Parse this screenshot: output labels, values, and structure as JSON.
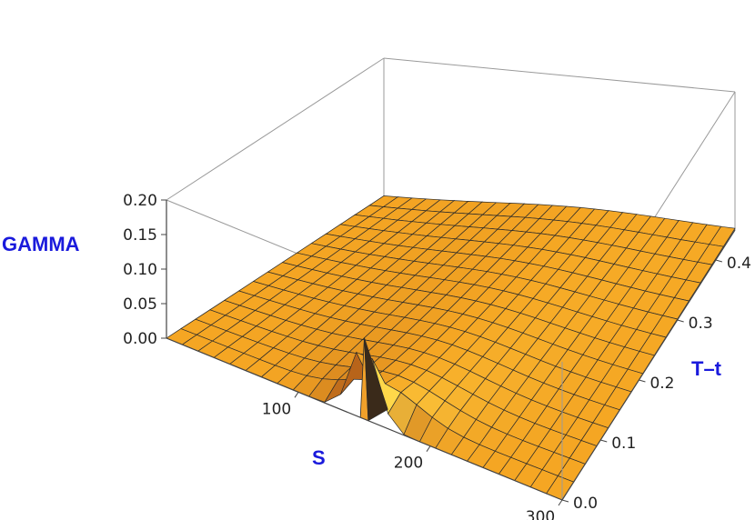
{
  "chart_data": {
    "type": "surface3d",
    "x_axis": {
      "label": "S",
      "range": [
        0,
        300
      ],
      "ticks": [
        "100",
        "200",
        "300"
      ]
    },
    "y_axis": {
      "label": "T–t",
      "range": [
        0,
        0.45
      ],
      "ticks": [
        "0.0",
        "0.1",
        "0.2",
        "0.3",
        "0.4"
      ]
    },
    "z_axis": {
      "label": "GAMMA",
      "range": [
        0,
        0.2
      ],
      "ticks": [
        "0.00",
        "0.05",
        "0.10",
        "0.15",
        "0.20"
      ]
    },
    "surface": {
      "description_function": "gamma(S, T-t) of a European option; spike at S≈150 near T-t=0, smoothing and spreading as T-t grows",
      "strike": 150,
      "peak_gamma_near_expiry": 0.11,
      "mesh_s_count": 25,
      "mesh_t_count": 15
    },
    "colors": {
      "surface": "#f5a623",
      "surface_light": "#ffd84a",
      "surface_dark": "#b8641a",
      "box": "#9a9a9a",
      "axis_title": "#1a1adc"
    },
    "grid": false
  }
}
